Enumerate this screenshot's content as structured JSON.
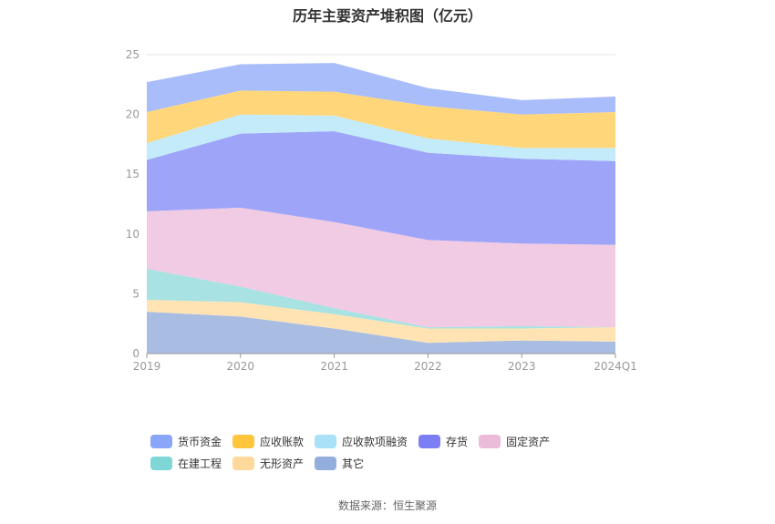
{
  "chart_data": {
    "type": "area",
    "stacked": true,
    "title": "历年主要资产堆积图（亿元）",
    "categories": [
      "2019",
      "2020",
      "2021",
      "2022",
      "2023",
      "2024Q1"
    ],
    "ylim": [
      0,
      25
    ],
    "yticks": [
      "0",
      "5",
      "10",
      "15",
      "20",
      "25"
    ],
    "series": [
      {
        "name": "其它",
        "color": "#a9bde3",
        "values": [
          3.5,
          3.1,
          2.1,
          0.9,
          1.1,
          1.0
        ]
      },
      {
        "name": "无形资产",
        "color": "#ffe3b3",
        "values": [
          1.0,
          1.2,
          1.2,
          1.2,
          1.0,
          1.2
        ]
      },
      {
        "name": "在建工程",
        "color": "#a8e2e2",
        "values": [
          2.6,
          1.3,
          0.5,
          0.1,
          0.2,
          0.0
        ]
      },
      {
        "name": "固定资产",
        "color": "#f1cae3",
        "values": [
          4.8,
          6.6,
          7.2,
          7.3,
          6.9,
          6.9
        ]
      },
      {
        "name": "存货",
        "color": "#9ea5f8",
        "values": [
          4.3,
          6.2,
          7.6,
          7.3,
          7.1,
          7.0
        ]
      },
      {
        "name": "应收款项融资",
        "color": "#c3ebfa",
        "values": [
          1.4,
          1.6,
          1.3,
          1.2,
          0.9,
          1.1
        ]
      },
      {
        "name": "应收账款",
        "color": "#ffd67a",
        "values": [
          2.6,
          2.0,
          2.0,
          2.7,
          2.8,
          3.0
        ]
      },
      {
        "name": "货币资金",
        "color": "#a9bdfb",
        "values": [
          2.5,
          2.2,
          2.4,
          1.5,
          1.2,
          1.3
        ]
      }
    ]
  },
  "legend": {
    "items": [
      {
        "label": "货币资金",
        "color": "#8aa6f8"
      },
      {
        "label": "应收账款",
        "color": "#ffc53d"
      },
      {
        "label": "应收款项融资",
        "color": "#a9e1f8"
      },
      {
        "label": "存货",
        "color": "#7b7ff3"
      },
      {
        "label": "固定资产",
        "color": "#ebbbd9"
      },
      {
        "label": "在建工程",
        "color": "#7fd6d6"
      },
      {
        "label": "无形资产",
        "color": "#ffd99b"
      },
      {
        "label": "其它",
        "color": "#93aedc"
      }
    ]
  },
  "source": "数据来源：恒生聚源"
}
